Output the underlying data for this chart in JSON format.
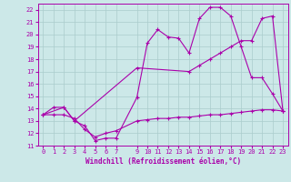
{
  "xlabel": "Windchill (Refroidissement éolien,°C)",
  "bg_color": "#cce8e8",
  "line_color": "#aa00aa",
  "grid_color": "#aacccc",
  "xlim": [
    -0.5,
    23.5
  ],
  "ylim": [
    11,
    22.5
  ],
  "xticks": [
    0,
    1,
    2,
    3,
    4,
    5,
    6,
    7,
    9,
    10,
    11,
    12,
    13,
    14,
    15,
    16,
    17,
    18,
    19,
    20,
    21,
    22,
    23
  ],
  "yticks": [
    11,
    12,
    13,
    14,
    15,
    16,
    17,
    18,
    19,
    20,
    21,
    22
  ],
  "line1_x": [
    0,
    1,
    2,
    3,
    4,
    5,
    6,
    7,
    9,
    10,
    11,
    12,
    13,
    14,
    15,
    16,
    17,
    18,
    19,
    20,
    21,
    22,
    23
  ],
  "line1_y": [
    13.5,
    14.1,
    14.1,
    13.0,
    12.6,
    11.4,
    11.6,
    11.6,
    14.9,
    19.3,
    20.4,
    19.8,
    19.7,
    18.5,
    21.3,
    22.2,
    22.2,
    21.5,
    19.0,
    16.5,
    16.5,
    15.2,
    13.8
  ],
  "line2_x": [
    0,
    2,
    3,
    9,
    14,
    15,
    16,
    17,
    18,
    19,
    20,
    21,
    22,
    23
  ],
  "line2_y": [
    13.5,
    14.1,
    13.0,
    17.3,
    17.0,
    17.5,
    18.0,
    18.5,
    19.0,
    19.5,
    19.5,
    21.3,
    21.5,
    13.8
  ],
  "line3_x": [
    0,
    1,
    2,
    3,
    4,
    5,
    6,
    7,
    9,
    10,
    11,
    12,
    13,
    14,
    15,
    16,
    17,
    18,
    19,
    20,
    21,
    22,
    23
  ],
  "line3_y": [
    13.5,
    13.5,
    13.5,
    13.2,
    12.3,
    11.7,
    12.0,
    12.2,
    13.0,
    13.1,
    13.2,
    13.2,
    13.3,
    13.3,
    13.4,
    13.5,
    13.5,
    13.6,
    13.7,
    13.8,
    13.9,
    13.9,
    13.8
  ]
}
